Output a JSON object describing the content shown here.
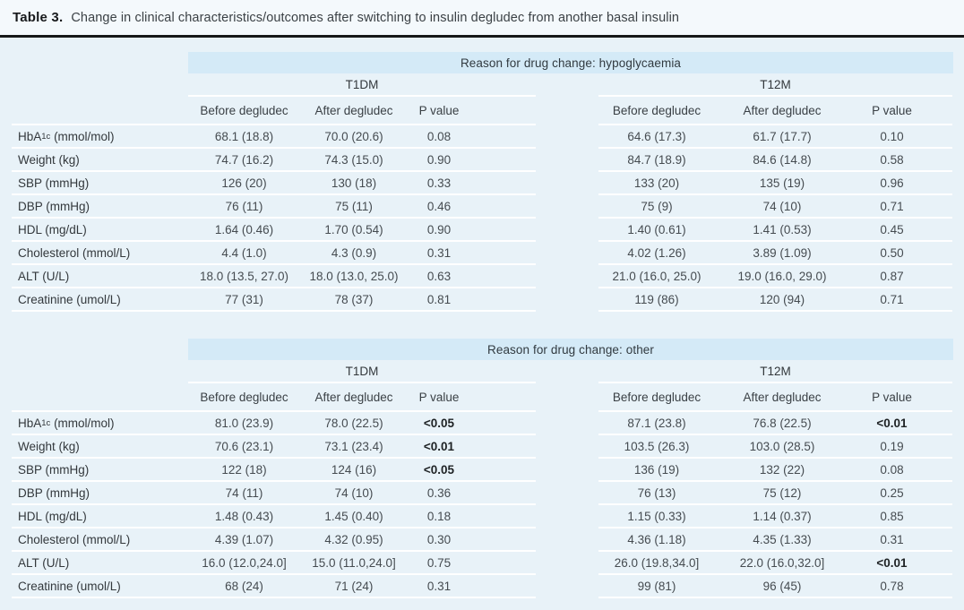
{
  "title": {
    "label": "Table 3.",
    "text": "Change in clinical characteristics/outcomes after switching to insulin degludec from another basal insulin"
  },
  "columns": {
    "before": "Before degludec",
    "after": "After degludec",
    "p": "P value"
  },
  "groups": {
    "g1": "T1DM",
    "g2": "T12M"
  },
  "row_labels": [
    {
      "pre": "HbA",
      "sub": "1c",
      "post": " (mmol/mol)"
    },
    {
      "pre": "Weight (kg)",
      "sub": "",
      "post": ""
    },
    {
      "pre": "SBP (mmHg)",
      "sub": "",
      "post": ""
    },
    {
      "pre": "DBP (mmHg)",
      "sub": "",
      "post": ""
    },
    {
      "pre": "HDL (mg/dL)",
      "sub": "",
      "post": ""
    },
    {
      "pre": "Cholesterol (mmol/L)",
      "sub": "",
      "post": ""
    },
    {
      "pre": "ALT (U/L)",
      "sub": "",
      "post": ""
    },
    {
      "pre": "Creatinine (umol/L)",
      "sub": "",
      "post": ""
    }
  ],
  "sections": [
    {
      "band": "Reason for drug change: hypoglycaemia",
      "rows": [
        {
          "t1dm_before": "68.1 (18.8)",
          "t1dm_after": "70.0 (20.6)",
          "t1dm_p": "0.08",
          "t1dm_p_bold": false,
          "t12m_before": "64.6 (17.3)",
          "t12m_after": "61.7 (17.7)",
          "t12m_p": "0.10",
          "t12m_p_bold": false
        },
        {
          "t1dm_before": "74.7 (16.2)",
          "t1dm_after": "74.3 (15.0)",
          "t1dm_p": "0.90",
          "t1dm_p_bold": false,
          "t12m_before": "84.7 (18.9)",
          "t12m_after": "84.6 (14.8)",
          "t12m_p": "0.58",
          "t12m_p_bold": false
        },
        {
          "t1dm_before": "126 (20)",
          "t1dm_after": "130 (18)",
          "t1dm_p": "0.33",
          "t1dm_p_bold": false,
          "t12m_before": "133 (20)",
          "t12m_after": "135 (19)",
          "t12m_p": "0.96",
          "t12m_p_bold": false
        },
        {
          "t1dm_before": "76 (11)",
          "t1dm_after": "75 (11)",
          "t1dm_p": "0.46",
          "t1dm_p_bold": false,
          "t12m_before": "75 (9)",
          "t12m_after": "74 (10)",
          "t12m_p": "0.71",
          "t12m_p_bold": false
        },
        {
          "t1dm_before": "1.64 (0.46)",
          "t1dm_after": "1.70 (0.54)",
          "t1dm_p": "0.90",
          "t1dm_p_bold": false,
          "t12m_before": "1.40 (0.61)",
          "t12m_after": "1.41 (0.53)",
          "t12m_p": "0.45",
          "t12m_p_bold": false
        },
        {
          "t1dm_before": "4.4 (1.0)",
          "t1dm_after": "4.3 (0.9)",
          "t1dm_p": "0.31",
          "t1dm_p_bold": false,
          "t12m_before": "4.02 (1.26)",
          "t12m_after": "3.89 (1.09)",
          "t12m_p": "0.50",
          "t12m_p_bold": false
        },
        {
          "t1dm_before": "18.0 (13.5, 27.0)",
          "t1dm_after": "18.0 (13.0, 25.0)",
          "t1dm_p": "0.63",
          "t1dm_p_bold": false,
          "t12m_before": "21.0 (16.0, 25.0)",
          "t12m_after": "19.0 (16.0, 29.0)",
          "t12m_p": "0.87",
          "t12m_p_bold": false
        },
        {
          "t1dm_before": "77 (31)",
          "t1dm_after": "78 (37)",
          "t1dm_p": "0.81",
          "t1dm_p_bold": false,
          "t12m_before": "119 (86)",
          "t12m_after": "120 (94)",
          "t12m_p": "0.71",
          "t12m_p_bold": false
        }
      ]
    },
    {
      "band": "Reason for drug change: other",
      "rows": [
        {
          "t1dm_before": "81.0 (23.9)",
          "t1dm_after": "78.0 (22.5)",
          "t1dm_p": "<0.05",
          "t1dm_p_bold": true,
          "t12m_before": "87.1 (23.8)",
          "t12m_after": "76.8 (22.5)",
          "t12m_p": "<0.01",
          "t12m_p_bold": true
        },
        {
          "t1dm_before": "70.6 (23.1)",
          "t1dm_after": "73.1 (23.4)",
          "t1dm_p": "<0.01",
          "t1dm_p_bold": true,
          "t12m_before": "103.5 (26.3)",
          "t12m_after": "103.0 (28.5)",
          "t12m_p": "0.19",
          "t12m_p_bold": false
        },
        {
          "t1dm_before": "122 (18)",
          "t1dm_after": "124 (16)",
          "t1dm_p": "<0.05",
          "t1dm_p_bold": true,
          "t12m_before": "136 (19)",
          "t12m_after": "132 (22)",
          "t12m_p": "0.08",
          "t12m_p_bold": false
        },
        {
          "t1dm_before": "74 (11)",
          "t1dm_after": "74 (10)",
          "t1dm_p": "0.36",
          "t1dm_p_bold": false,
          "t12m_before": "76 (13)",
          "t12m_after": "75 (12)",
          "t12m_p": "0.25",
          "t12m_p_bold": false
        },
        {
          "t1dm_before": "1.48 (0.43)",
          "t1dm_after": "1.45 (0.40)",
          "t1dm_p": "0.18",
          "t1dm_p_bold": false,
          "t12m_before": "1.15 (0.33)",
          "t12m_after": "1.14 (0.37)",
          "t12m_p": "0.85",
          "t12m_p_bold": false
        },
        {
          "t1dm_before": "4.39 (1.07)",
          "t1dm_after": "4.32 (0.95)",
          "t1dm_p": "0.30",
          "t1dm_p_bold": false,
          "t12m_before": "4.36 (1.18)",
          "t12m_after": "4.35 (1.33)",
          "t12m_p": "0.31",
          "t12m_p_bold": false
        },
        {
          "t1dm_before": "16.0 (12.0,24.0]",
          "t1dm_after": "15.0 (11.0,24.0]",
          "t1dm_p": "0.75",
          "t1dm_p_bold": false,
          "t12m_before": "26.0 (19.8,34.0]",
          "t12m_after": "22.0 (16.0,32.0]",
          "t12m_p": "<0.01",
          "t12m_p_bold": true
        },
        {
          "t1dm_before": "68 (24)",
          "t1dm_after": "71 (24)",
          "t1dm_p": "0.31",
          "t1dm_p_bold": false,
          "t12m_before": "99 (81)",
          "t12m_after": "96 (45)",
          "t12m_p": "0.78",
          "t12m_p_bold": false
        }
      ]
    }
  ],
  "colors": {
    "page_bg": "#e8f2f8",
    "title_bg": "#f4f9fc",
    "band_bg": "#d4eaf7",
    "separator": "#ffffff",
    "rule": "#161819",
    "text": "#3d4449"
  }
}
